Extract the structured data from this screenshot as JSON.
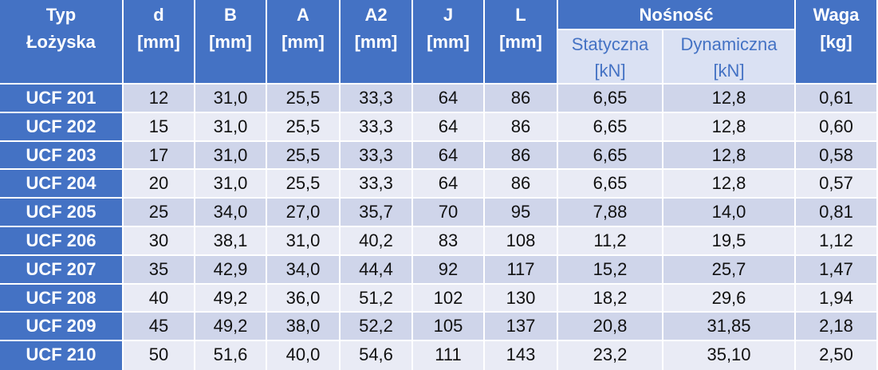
{
  "table": {
    "header": {
      "type": [
        "Typ",
        "Łożyska"
      ],
      "columns": [
        [
          "d",
          "[mm]"
        ],
        [
          "B",
          "[mm]"
        ],
        [
          "A",
          "[mm]"
        ],
        [
          "A2",
          "[mm]"
        ],
        [
          "J",
          "[mm]"
        ],
        [
          "L",
          "[mm]"
        ]
      ],
      "group": "Nośność",
      "subcolumns": [
        [
          "Statyczna",
          "[kN]"
        ],
        [
          "Dynamiczna",
          "[kN]"
        ]
      ],
      "weight": [
        "Waga",
        "[kg]"
      ]
    },
    "rows": [
      [
        "UCF 201",
        "12",
        "31,0",
        "25,5",
        "33,3",
        "64",
        "86",
        "6,65",
        "12,8",
        "0,61"
      ],
      [
        "UCF 202",
        "15",
        "31,0",
        "25,5",
        "33,3",
        "64",
        "86",
        "6,65",
        "12,8",
        "0,60"
      ],
      [
        "UCF 203",
        "17",
        "31,0",
        "25,5",
        "33,3",
        "64",
        "86",
        "6,65",
        "12,8",
        "0,58"
      ],
      [
        "UCF 204",
        "20",
        "31,0",
        "25,5",
        "33,3",
        "64",
        "86",
        "6,65",
        "12,8",
        "0,57"
      ],
      [
        "UCF 205",
        "25",
        "34,0",
        "27,0",
        "35,7",
        "70",
        "95",
        "7,88",
        "14,0",
        "0,81"
      ],
      [
        "UCF 206",
        "30",
        "38,1",
        "31,0",
        "40,2",
        "83",
        "108",
        "11,2",
        "19,5",
        "1,12"
      ],
      [
        "UCF 207",
        "35",
        "42,9",
        "34,0",
        "44,4",
        "92",
        "117",
        "15,2",
        "25,7",
        "1,47"
      ],
      [
        "UCF 208",
        "40",
        "49,2",
        "36,0",
        "51,2",
        "102",
        "130",
        "18,2",
        "29,6",
        "1,94"
      ],
      [
        "UCF 209",
        "45",
        "49,2",
        "38,0",
        "52,2",
        "105",
        "137",
        "20,8",
        "31,85",
        "2,18"
      ],
      [
        "UCF 210",
        "50",
        "51,6",
        "40,0",
        "54,6",
        "111",
        "143",
        "23,2",
        "35,10",
        "2,50"
      ]
    ]
  }
}
